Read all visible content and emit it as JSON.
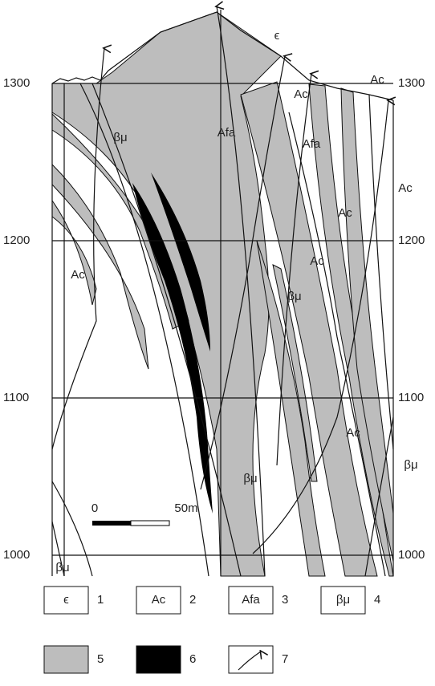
{
  "elevations": [
    1300,
    1200,
    1100,
    1000
  ],
  "map_labels": [
    "ϵ",
    "Ac",
    "Ac",
    "βμ",
    "Afa",
    "Afa",
    "Ac",
    "Ac",
    "Ac",
    "Ac",
    "βμ",
    "Ac",
    "βμ",
    "βμ",
    "βμ"
  ],
  "scale": {
    "start": "0",
    "end": "50m"
  },
  "legend": [
    {
      "symbol": "ϵ",
      "number": 1
    },
    {
      "symbol": "Ac",
      "number": 2
    },
    {
      "symbol": "Afa",
      "number": 3
    },
    {
      "symbol": "βμ",
      "number": 4
    },
    {
      "number": 5
    },
    {
      "number": 6
    },
    {
      "number": 7
    }
  ]
}
